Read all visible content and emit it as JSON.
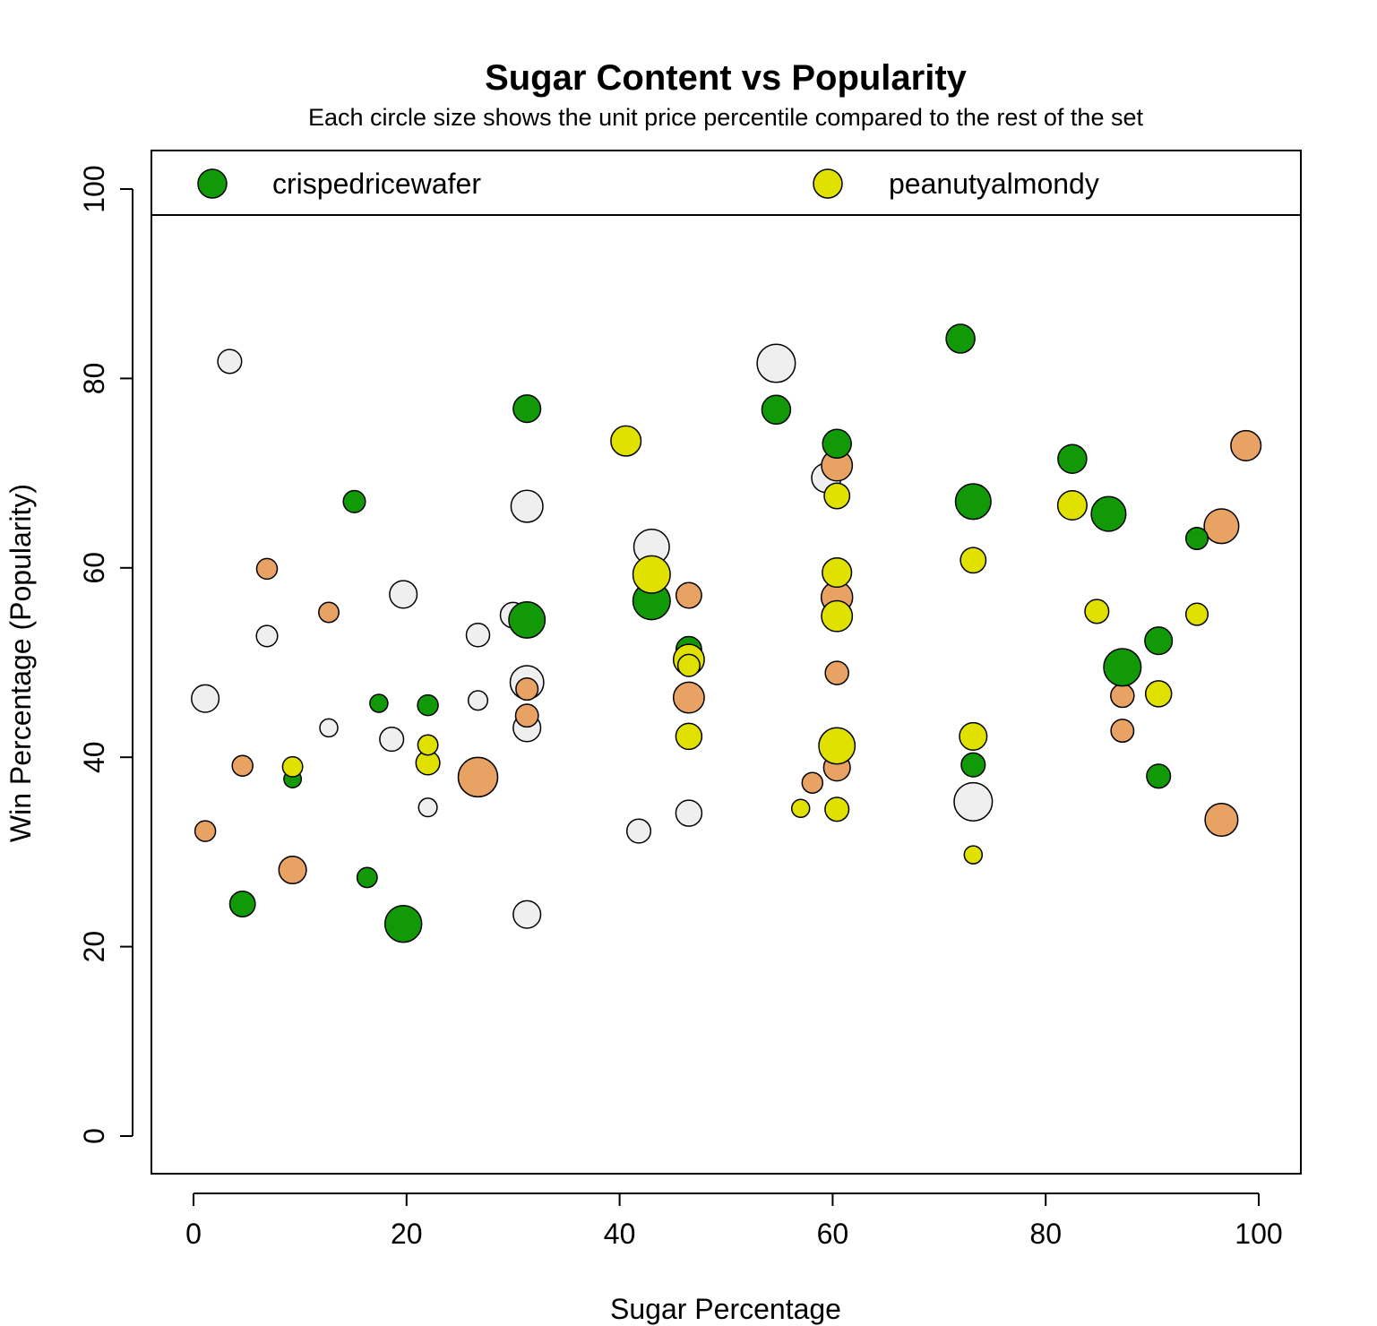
{
  "chart_data": {
    "type": "scatter",
    "title": "Sugar Content vs Popularity",
    "subtitle": "Each circle size shows the unit price percentile compared to the rest of the set",
    "xlabel": "Sugar Percentage",
    "ylabel": "Win Percentage (Popularity)",
    "xlim": [
      0,
      100
    ],
    "ylim": [
      0,
      100
    ],
    "xticks": [
      "0",
      "20",
      "40",
      "60",
      "80",
      "100"
    ],
    "yticks": [
      "0",
      "20",
      "40",
      "60",
      "80",
      "100"
    ],
    "grid": false,
    "legend_position": "top",
    "legend": [
      {
        "label": "crispedricewafer",
        "color": "#119908"
      },
      {
        "label": "peanutyalmondy",
        "color": "#e1e100"
      }
    ],
    "colors": {
      "crispedricewafer": "#119908",
      "peanutyalmondy": "#e1e100",
      "other_orange": "#e8a264",
      "other_white": "#efefef"
    },
    "size_variable": "unit price percentile",
    "points": [
      {
        "x": 1.1,
        "y": 46.2,
        "size": 0.55,
        "group": "other_white"
      },
      {
        "x": 3.4,
        "y": 81.8,
        "size": 0.42,
        "group": "other_white"
      },
      {
        "x": 6.9,
        "y": 52.8,
        "size": 0.32,
        "group": "other_white"
      },
      {
        "x": 12.7,
        "y": 43.1,
        "size": 0.2,
        "group": "other_white"
      },
      {
        "x": 18.6,
        "y": 41.9,
        "size": 0.42,
        "group": "other_white"
      },
      {
        "x": 19.7,
        "y": 57.2,
        "size": 0.55,
        "group": "other_white"
      },
      {
        "x": 22.0,
        "y": 34.7,
        "size": 0.22,
        "group": "other_white"
      },
      {
        "x": 26.7,
        "y": 52.9,
        "size": 0.4,
        "group": "other_white"
      },
      {
        "x": 26.7,
        "y": 46.0,
        "size": 0.25,
        "group": "other_white"
      },
      {
        "x": 30.0,
        "y": 55.0,
        "size": 0.48,
        "group": "other_white"
      },
      {
        "x": 31.3,
        "y": 66.5,
        "size": 0.72,
        "group": "other_white"
      },
      {
        "x": 31.3,
        "y": 47.9,
        "size": 0.78,
        "group": "other_white"
      },
      {
        "x": 31.3,
        "y": 43.1,
        "size": 0.55,
        "group": "other_white"
      },
      {
        "x": 31.3,
        "y": 23.4,
        "size": 0.55,
        "group": "other_white"
      },
      {
        "x": 41.8,
        "y": 32.2,
        "size": 0.42,
        "group": "other_white"
      },
      {
        "x": 43.0,
        "y": 62.2,
        "size": 0.85,
        "group": "other_white"
      },
      {
        "x": 46.5,
        "y": 34.1,
        "size": 0.5,
        "group": "other_white"
      },
      {
        "x": 54.7,
        "y": 81.6,
        "size": 0.95,
        "group": "other_white"
      },
      {
        "x": 59.4,
        "y": 69.5,
        "size": 0.62,
        "group": "other_white"
      },
      {
        "x": 73.2,
        "y": 35.3,
        "size": 0.95,
        "group": "other_white"
      },
      {
        "x": 1.1,
        "y": 32.2,
        "size": 0.3,
        "group": "other_orange"
      },
      {
        "x": 4.6,
        "y": 39.1,
        "size": 0.3,
        "group": "other_orange"
      },
      {
        "x": 6.9,
        "y": 59.9,
        "size": 0.3,
        "group": "other_orange"
      },
      {
        "x": 9.3,
        "y": 28.1,
        "size": 0.55,
        "group": "other_orange"
      },
      {
        "x": 12.7,
        "y": 55.3,
        "size": 0.28,
        "group": "other_orange"
      },
      {
        "x": 26.7,
        "y": 37.9,
        "size": 1.0,
        "group": "other_orange"
      },
      {
        "x": 31.3,
        "y": 47.2,
        "size": 0.35,
        "group": "other_orange"
      },
      {
        "x": 31.3,
        "y": 44.4,
        "size": 0.38,
        "group": "other_orange"
      },
      {
        "x": 46.5,
        "y": 57.1,
        "size": 0.48,
        "group": "other_orange"
      },
      {
        "x": 46.5,
        "y": 46.3,
        "size": 0.68,
        "group": "other_orange"
      },
      {
        "x": 58.1,
        "y": 37.3,
        "size": 0.3,
        "group": "other_orange"
      },
      {
        "x": 60.4,
        "y": 70.8,
        "size": 0.68,
        "group": "other_orange"
      },
      {
        "x": 60.4,
        "y": 56.9,
        "size": 0.7,
        "group": "other_orange"
      },
      {
        "x": 60.4,
        "y": 48.9,
        "size": 0.4,
        "group": "other_orange"
      },
      {
        "x": 60.4,
        "y": 38.9,
        "size": 0.52,
        "group": "other_orange"
      },
      {
        "x": 87.2,
        "y": 46.5,
        "size": 0.4,
        "group": "other_orange"
      },
      {
        "x": 87.2,
        "y": 42.8,
        "size": 0.38,
        "group": "other_orange"
      },
      {
        "x": 96.5,
        "y": 64.4,
        "size": 0.82,
        "group": "other_orange"
      },
      {
        "x": 96.5,
        "y": 33.4,
        "size": 0.75,
        "group": "other_orange"
      },
      {
        "x": 98.8,
        "y": 72.9,
        "size": 0.65,
        "group": "other_orange"
      },
      {
        "x": 4.6,
        "y": 24.5,
        "size": 0.48,
        "group": "crispedricewafer"
      },
      {
        "x": 9.3,
        "y": 37.7,
        "size": 0.18,
        "group": "crispedricewafer"
      },
      {
        "x": 15.1,
        "y": 67.0,
        "size": 0.35,
        "group": "crispedricewafer"
      },
      {
        "x": 16.3,
        "y": 27.3,
        "size": 0.28,
        "group": "crispedricewafer"
      },
      {
        "x": 17.4,
        "y": 45.7,
        "size": 0.2,
        "group": "crispedricewafer"
      },
      {
        "x": 19.7,
        "y": 22.4,
        "size": 0.9,
        "group": "crispedricewafer"
      },
      {
        "x": 22.0,
        "y": 45.5,
        "size": 0.3,
        "group": "crispedricewafer"
      },
      {
        "x": 31.3,
        "y": 76.8,
        "size": 0.55,
        "group": "crispedricewafer"
      },
      {
        "x": 31.3,
        "y": 54.5,
        "size": 0.88,
        "group": "crispedricewafer"
      },
      {
        "x": 43.0,
        "y": 56.5,
        "size": 0.92,
        "group": "crispedricewafer"
      },
      {
        "x": 46.5,
        "y": 51.4,
        "size": 0.48,
        "group": "crispedricewafer"
      },
      {
        "x": 54.7,
        "y": 76.7,
        "size": 0.6,
        "group": "crispedricewafer"
      },
      {
        "x": 60.4,
        "y": 73.1,
        "size": 0.6,
        "group": "crispedricewafer"
      },
      {
        "x": 72.0,
        "y": 84.2,
        "size": 0.6,
        "group": "crispedricewafer"
      },
      {
        "x": 73.2,
        "y": 67.0,
        "size": 0.85,
        "group": "crispedricewafer"
      },
      {
        "x": 73.2,
        "y": 39.2,
        "size": 0.42,
        "group": "crispedricewafer"
      },
      {
        "x": 82.5,
        "y": 71.5,
        "size": 0.6,
        "group": "crispedricewafer"
      },
      {
        "x": 85.9,
        "y": 65.7,
        "size": 0.82,
        "group": "crispedricewafer"
      },
      {
        "x": 87.2,
        "y": 49.5,
        "size": 0.92,
        "group": "crispedricewafer"
      },
      {
        "x": 90.6,
        "y": 52.3,
        "size": 0.55,
        "group": "crispedricewafer"
      },
      {
        "x": 90.6,
        "y": 38.0,
        "size": 0.42,
        "group": "crispedricewafer"
      },
      {
        "x": 94.2,
        "y": 63.1,
        "size": 0.35,
        "group": "crispedricewafer"
      },
      {
        "x": 9.3,
        "y": 39.0,
        "size": 0.28,
        "group": "peanutyalmondy"
      },
      {
        "x": 22.0,
        "y": 41.3,
        "size": 0.28,
        "group": "peanutyalmondy"
      },
      {
        "x": 22.0,
        "y": 39.4,
        "size": 0.42,
        "group": "peanutyalmondy"
      },
      {
        "x": 40.6,
        "y": 73.4,
        "size": 0.65,
        "group": "peanutyalmondy"
      },
      {
        "x": 43.0,
        "y": 59.3,
        "size": 0.92,
        "group": "peanutyalmondy"
      },
      {
        "x": 46.5,
        "y": 50.3,
        "size": 0.68,
        "group": "peanutyalmondy"
      },
      {
        "x": 46.5,
        "y": 49.7,
        "size": 0.35,
        "group": "peanutyalmondy"
      },
      {
        "x": 46.5,
        "y": 42.2,
        "size": 0.5,
        "group": "peanutyalmondy"
      },
      {
        "x": 57.0,
        "y": 34.6,
        "size": 0.2,
        "group": "peanutyalmondy"
      },
      {
        "x": 60.4,
        "y": 67.6,
        "size": 0.48,
        "group": "peanutyalmondy"
      },
      {
        "x": 60.4,
        "y": 59.5,
        "size": 0.62,
        "group": "peanutyalmondy"
      },
      {
        "x": 60.4,
        "y": 54.9,
        "size": 0.68,
        "group": "peanutyalmondy"
      },
      {
        "x": 60.4,
        "y": 41.2,
        "size": 0.88,
        "group": "peanutyalmondy"
      },
      {
        "x": 60.4,
        "y": 34.5,
        "size": 0.42,
        "group": "peanutyalmondy"
      },
      {
        "x": 73.2,
        "y": 60.8,
        "size": 0.48,
        "group": "peanutyalmondy"
      },
      {
        "x": 73.2,
        "y": 42.2,
        "size": 0.55,
        "group": "peanutyalmondy"
      },
      {
        "x": 73.2,
        "y": 29.7,
        "size": 0.2,
        "group": "peanutyalmondy"
      },
      {
        "x": 82.5,
        "y": 66.6,
        "size": 0.62,
        "group": "peanutyalmondy"
      },
      {
        "x": 84.8,
        "y": 55.4,
        "size": 0.42,
        "group": "peanutyalmondy"
      },
      {
        "x": 90.6,
        "y": 46.7,
        "size": 0.5,
        "group": "peanutyalmondy"
      },
      {
        "x": 94.2,
        "y": 55.1,
        "size": 0.35,
        "group": "peanutyalmondy"
      }
    ]
  }
}
